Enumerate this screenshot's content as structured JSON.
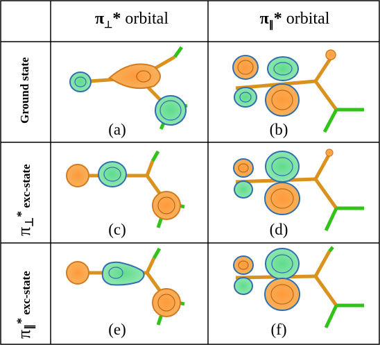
{
  "headers": {
    "col1_symbol": "π",
    "col1_sub": "⊥",
    "col1_star": "*",
    "col1_word": " orbital",
    "col2_symbol": "π",
    "col2_sub": "∥",
    "col2_star": "*",
    "col2_word": " orbital"
  },
  "rows": [
    {
      "label": "Ground state"
    },
    {
      "pi": "π",
      "sub": "⊥",
      "star": "*",
      "rest": "exc-state"
    },
    {
      "pi": "π",
      "sub": "∥",
      "star": "*",
      "rest": "exc-state"
    }
  ],
  "panels": [
    "(a)",
    "(b)",
    "(c)",
    "(d)",
    "(e)",
    "(f)"
  ],
  "colors": {
    "bond": "#d9921e",
    "halogen": "#33c21a",
    "lobe_orange": "#f5a040",
    "lobe_green": "#7ee0a0",
    "contour_blue": "#2f6fb0"
  }
}
